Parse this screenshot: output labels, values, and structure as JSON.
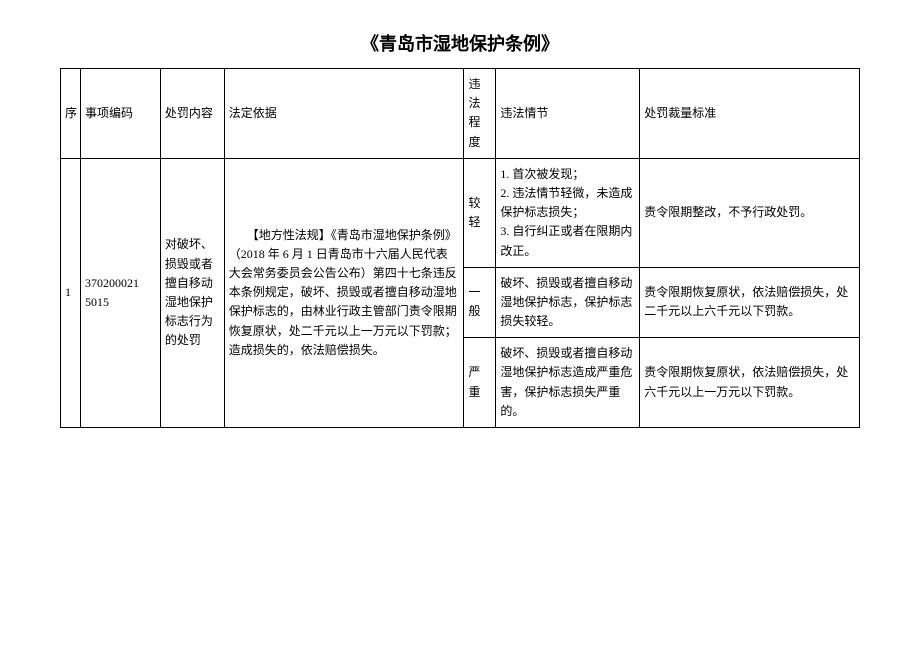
{
  "title": "《青岛市湿地保护条例》",
  "headers": {
    "seq": "序",
    "code": "事项编码",
    "item": "处罚内容",
    "basis": "法定依据",
    "level": "违法程度",
    "circ": "违法情节",
    "std": "处罚裁量标准"
  },
  "row": {
    "seq": "1",
    "code": "370200021\n5015",
    "item": "对破坏、损毁或者擅自移动湿地保护标志行为的处罚",
    "basis": "　　【地方性法规】《青岛市湿地保护条例》（2018 年 6 月 1 日青岛市十六届人民代表大会常务委员会公告公布）第四十七条违反本条例规定，破坏、损毁或者擅自移动湿地保护标志的，由林业行政主管部门责令限期恢复原状，处二千元以上一万元以下罚款；造成损失的，依法赔偿损失。",
    "levels": {
      "light": {
        "level": "较轻",
        "circ": "1. 首次被发现；\n2. 违法情节轻微，未造成保护标志损失；\n3. 自行纠正或者在限期内改正。",
        "std": "责令限期整改，不予行政处罚。"
      },
      "normal": {
        "level": "一般",
        "circ": "破坏、损毁或者擅自移动湿地保护标志，保护标志损失较轻。",
        "std": "责令限期恢复原状，依法赔偿损失，处二千元以上六千元以下罚款。"
      },
      "severe": {
        "level": "严重",
        "circ": "破坏、损毁或者擅自移动湿地保护标志造成严重危害，保护标志损失严重的。",
        "std": "责令限期恢复原状，依法赔偿损失，处六千元以上一万元以下罚款。"
      }
    }
  }
}
